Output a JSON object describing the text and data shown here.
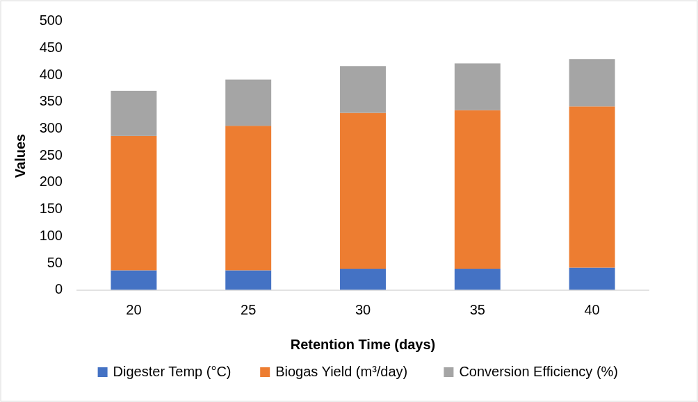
{
  "chart_data": {
    "type": "bar",
    "stacked": true,
    "xlabel": "Retention Time (days)",
    "ylabel": "Values",
    "categories": [
      "20",
      "25",
      "30",
      "35",
      "40"
    ],
    "series": [
      {
        "name": "Digester Temp (°C)",
        "color": "#4472c4",
        "values": [
          37,
          37,
          40,
          40,
          42
        ]
      },
      {
        "name": "Biogas Yield (m³/day)",
        "color": "#ed7d31",
        "values": [
          250,
          269,
          290,
          295,
          300
        ]
      },
      {
        "name": "Conversion Efficiency (%)",
        "color": "#a5a5a5",
        "values": [
          84,
          86,
          87,
          87,
          88
        ]
      }
    ],
    "ylim": [
      0,
      500
    ],
    "yticks": [
      0,
      50,
      100,
      150,
      200,
      250,
      300,
      350,
      400,
      450,
      500
    ],
    "grid": false,
    "legend": "bottom"
  }
}
